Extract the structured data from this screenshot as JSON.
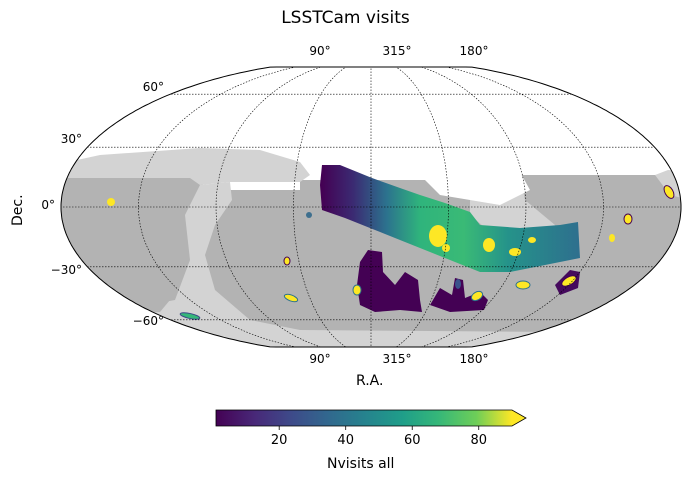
{
  "chart_data": {
    "type": "heatmap",
    "projection": "mollweide",
    "title": "LSSTCam visits",
    "xlabel": "R.A.",
    "ylabel": "Dec.",
    "ra_tick_labels": [
      "90°",
      "315°",
      "180°"
    ],
    "dec_ticks": [
      60,
      30,
      0,
      -30,
      -60
    ],
    "dec_tick_labels": [
      "60°",
      "30°",
      "0°",
      "−30°",
      "−60°"
    ],
    "meridian_spacing_deg": 45,
    "grid": true,
    "colorbar": {
      "label": "Nvisits all",
      "colormap": "viridis",
      "range": [
        1,
        90
      ],
      "extend": "max",
      "ticks": [
        20,
        40,
        60,
        80
      ],
      "tick_labels": [
        "20",
        "40",
        "60",
        "80"
      ]
    },
    "layers": {
      "footprint_light": "#d3d3d3",
      "footprint_dark": "#b3b3b3"
    }
  }
}
